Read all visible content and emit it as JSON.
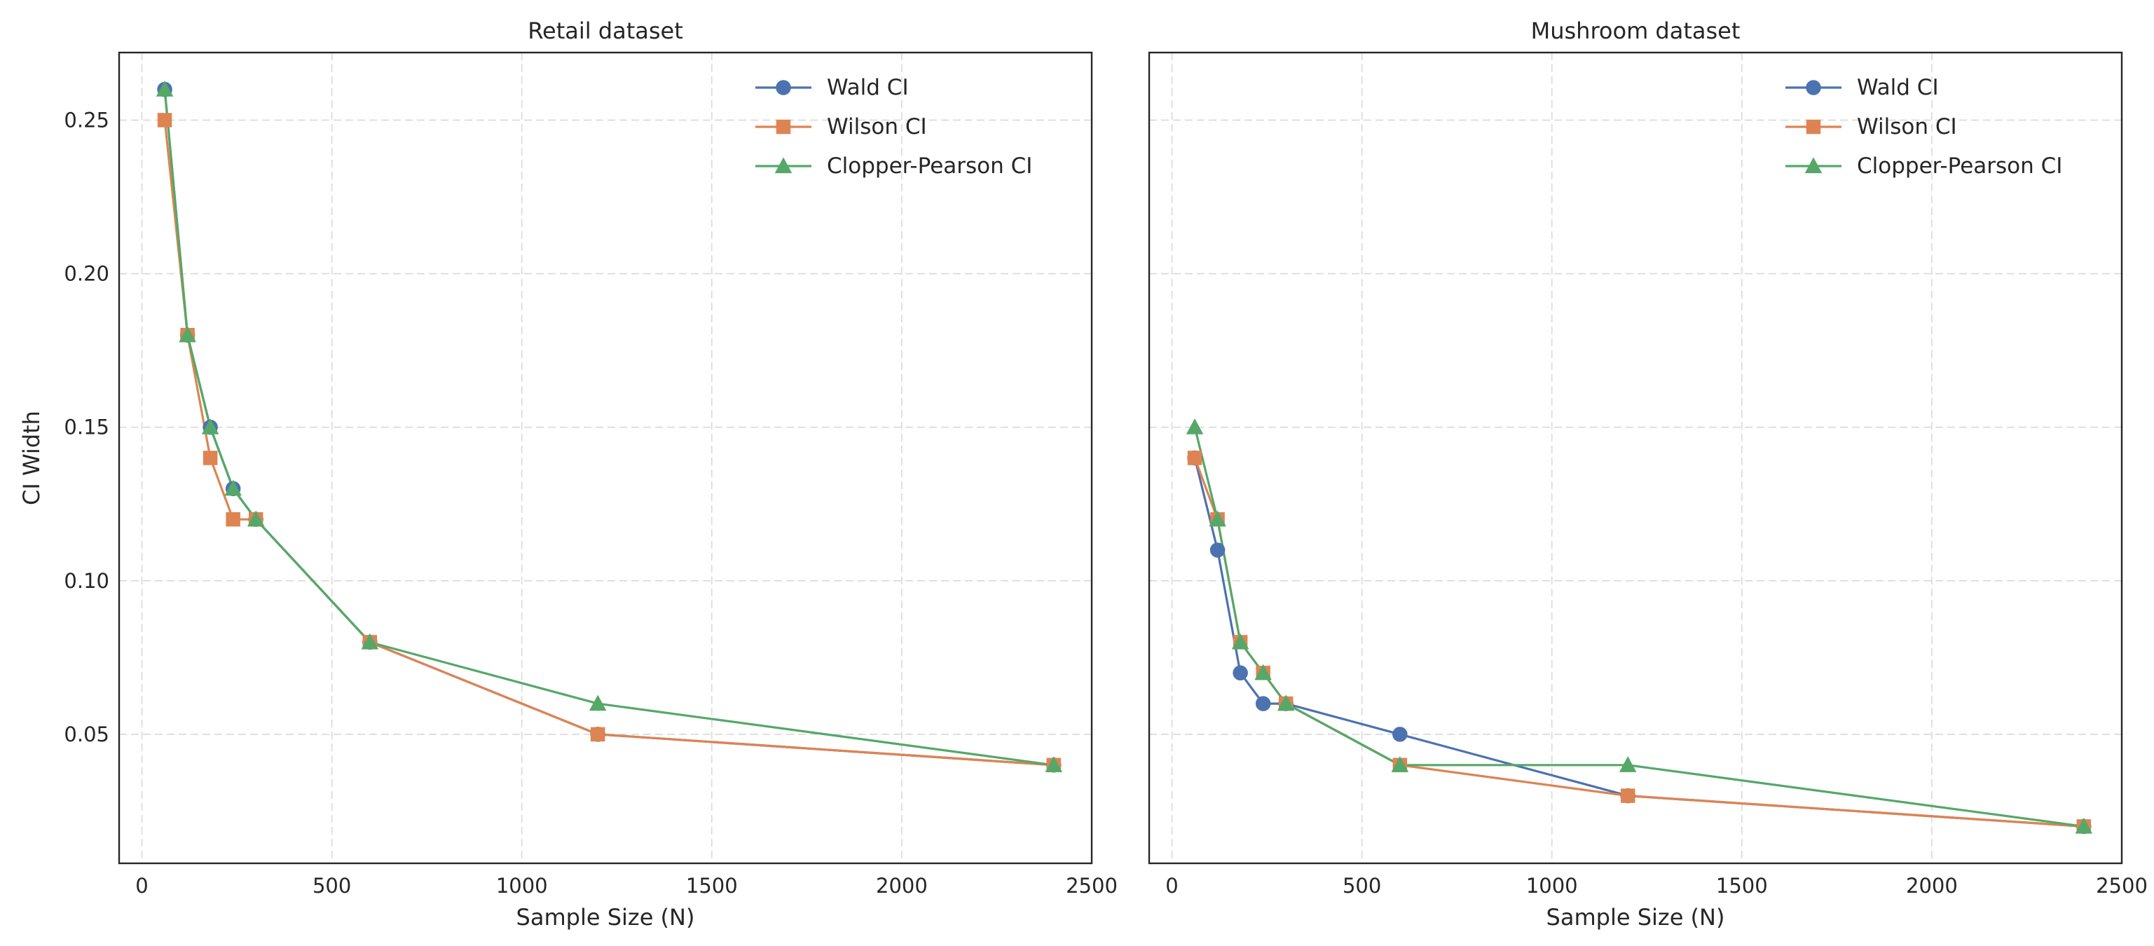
{
  "chart_data": [
    {
      "type": "line",
      "title": "Retail dataset",
      "xlabel": "Sample Size (N)",
      "ylabel": "CI Width",
      "xlim": [
        -60,
        2500
      ],
      "ylim": [
        0.008,
        0.272
      ],
      "xticks": [
        0,
        500,
        1000,
        1500,
        2000,
        2500
      ],
      "xtick_labels": [
        "0",
        "500",
        "1000",
        "1500",
        "2000",
        "2500"
      ],
      "yticks": [
        0.05,
        0.1,
        0.15,
        0.2,
        0.25
      ],
      "ytick_labels": [
        "0.05",
        "0.10",
        "0.15",
        "0.20",
        "0.25"
      ],
      "grid": true,
      "legend": "top-right",
      "x": [
        60,
        120,
        180,
        240,
        300,
        600,
        1200,
        2400
      ],
      "series": [
        {
          "name": "Wald CI",
          "marker": "circle",
          "color": "#4c72b0",
          "values": [
            0.26,
            0.18,
            0.15,
            0.13,
            0.12,
            0.08,
            0.05,
            0.04
          ]
        },
        {
          "name": "Wilson CI",
          "marker": "square",
          "color": "#dd8452",
          "values": [
            0.25,
            0.18,
            0.14,
            0.12,
            0.12,
            0.08,
            0.05,
            0.04
          ]
        },
        {
          "name": "Clopper-Pearson CI",
          "marker": "triangle",
          "color": "#55a868",
          "values": [
            0.26,
            0.18,
            0.15,
            0.13,
            0.12,
            0.08,
            0.06,
            0.04
          ]
        }
      ]
    },
    {
      "type": "line",
      "title": "Mushroom dataset",
      "xlabel": "Sample Size (N)",
      "ylabel": "",
      "xlim": [
        -60,
        2500
      ],
      "ylim": [
        0.008,
        0.272
      ],
      "xticks": [
        0,
        500,
        1000,
        1500,
        2000,
        2500
      ],
      "xtick_labels": [
        "0",
        "500",
        "1000",
        "1500",
        "2000",
        "2500"
      ],
      "yticks": [
        0.05,
        0.1,
        0.15,
        0.2,
        0.25
      ],
      "ytick_labels": [],
      "grid": true,
      "legend": "top-right",
      "x": [
        60,
        120,
        180,
        240,
        300,
        600,
        1200,
        2400
      ],
      "series": [
        {
          "name": "Wald CI",
          "marker": "circle",
          "color": "#4c72b0",
          "values": [
            0.14,
            0.11,
            0.07,
            0.06,
            0.06,
            0.05,
            0.03,
            0.02
          ]
        },
        {
          "name": "Wilson CI",
          "marker": "square",
          "color": "#dd8452",
          "values": [
            0.14,
            0.12,
            0.08,
            0.07,
            0.06,
            0.04,
            0.03,
            0.02
          ]
        },
        {
          "name": "Clopper-Pearson CI",
          "marker": "triangle",
          "color": "#55a868",
          "values": [
            0.15,
            0.12,
            0.08,
            0.07,
            0.06,
            0.04,
            0.04,
            0.02
          ]
        }
      ]
    }
  ]
}
